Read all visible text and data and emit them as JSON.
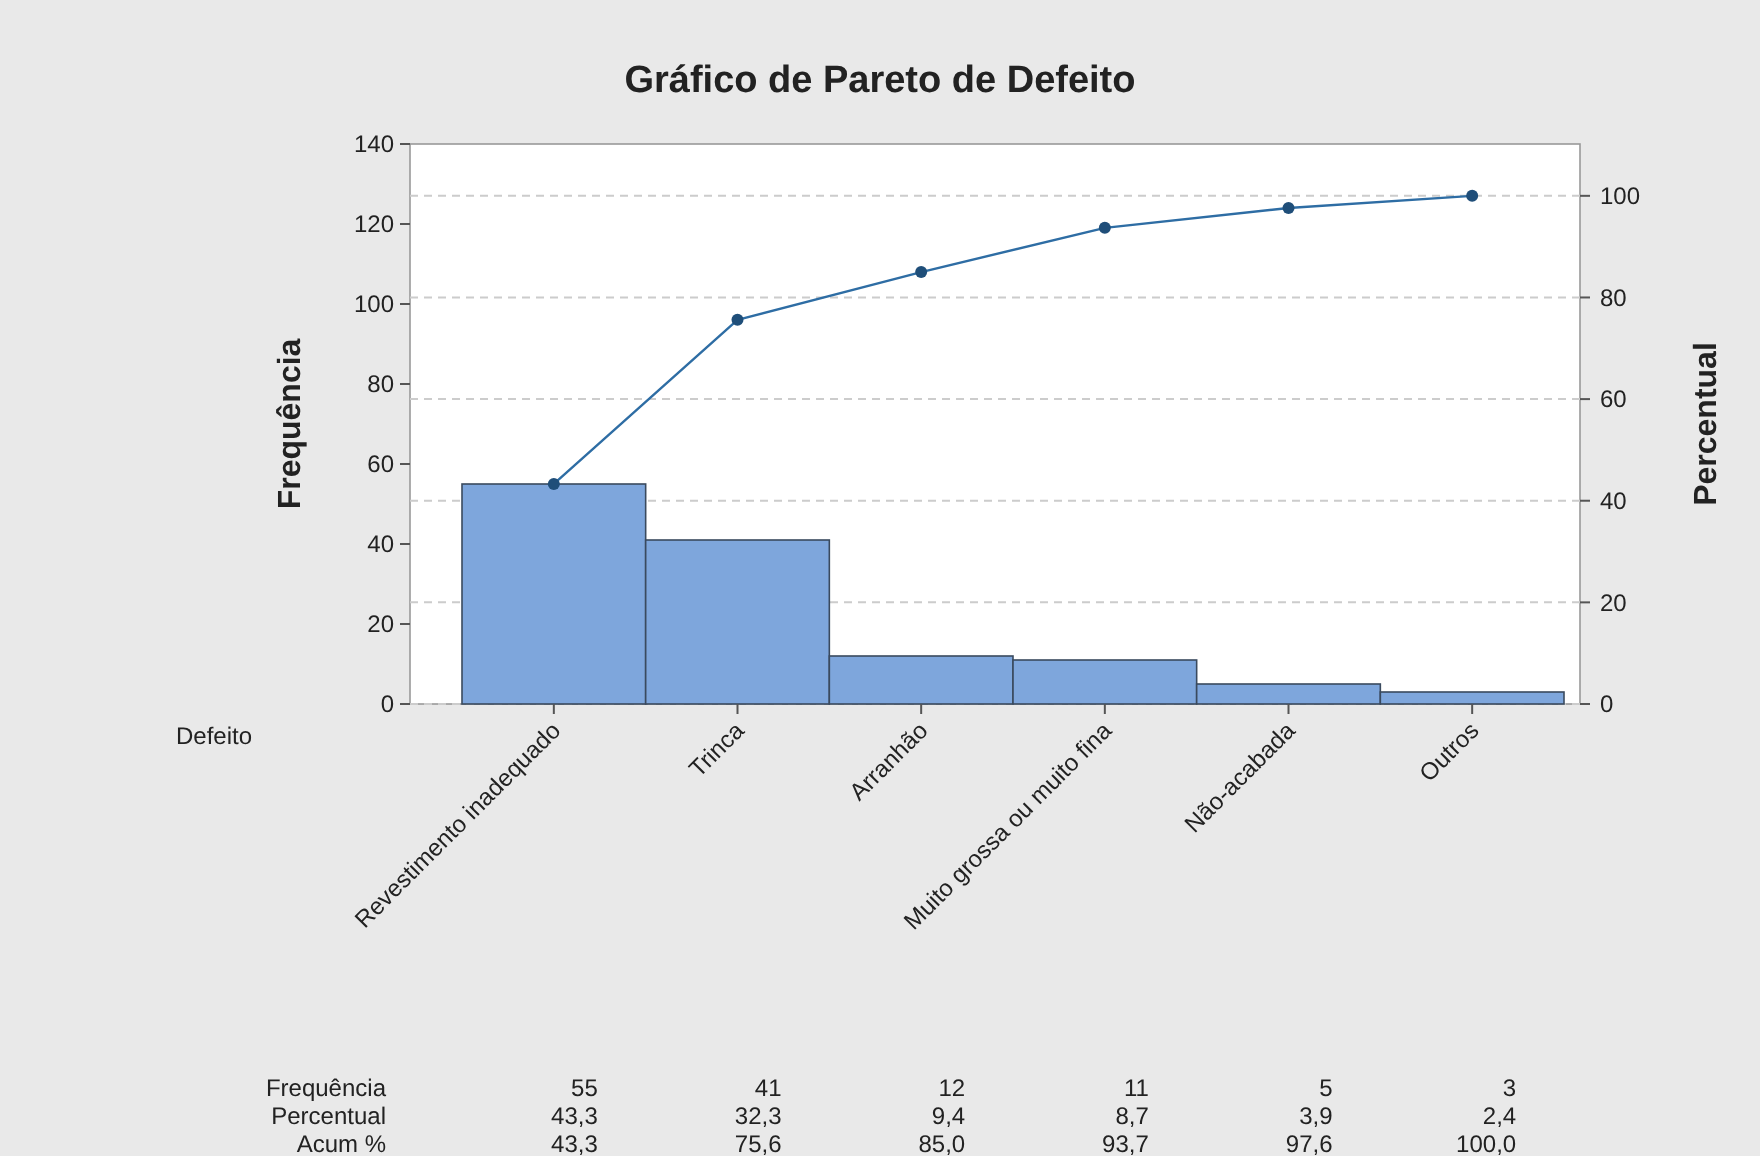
{
  "chart_data": {
    "type": "bar",
    "title": "Gráfico de Pareto de Defeito",
    "xlabel": "Defeito",
    "ylabel": "Frequência",
    "y2label": "Percentual",
    "categories": [
      "Revestimento inadequado",
      "Trinca",
      "Arranhão",
      "Muito grossa ou muito fina",
      "Não-acabada",
      "Outros"
    ],
    "series": [
      {
        "color": "#7ea6dc",
        "values": [
          55,
          41,
          12,
          11,
          5,
          3
        ],
        "value_labels": [
          "55",
          "41",
          "12",
          "11",
          "5",
          "3"
        ]
      },
      {
        "type": "line",
        "axis": "y2",
        "color": "#2e6da4",
        "values": [
          43.3,
          75.6,
          85.0,
          93.7,
          97.6,
          100.0
        ],
        "value_labels": [
          "43,3",
          "75,6",
          "85,0",
          "93,7",
          "97,6",
          "100,0"
        ]
      }
    ],
    "annotations": [
      "Frequência",
      "Percentual",
      "Acum %",
      "43,3",
      "32,3",
      "9,4",
      "8,7",
      "3,9",
      "2,4"
    ],
    "ylim": [
      0,
      140
    ],
    "yticks": [
      0,
      20,
      40,
      60,
      80,
      100,
      120,
      140
    ],
    "y2lim": [
      0,
      110.2
    ],
    "y2ticks": [
      0,
      20,
      40,
      60,
      80,
      100
    ],
    "grid": "y2",
    "marker": "circle",
    "data_labels": true
  }
}
